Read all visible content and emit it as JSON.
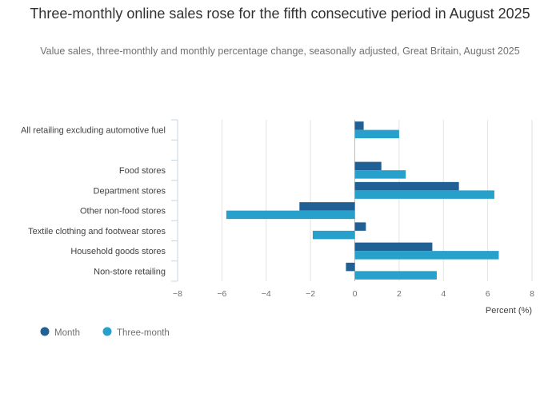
{
  "chart_data": {
    "type": "bar",
    "orientation": "horizontal",
    "title": "Three-monthly online sales rose for the fifth consecutive period in August 2025",
    "subtitle": "Value sales, three-monthly and monthly percentage change, seasonally adjusted, Great Britain, August 2025",
    "xlabel": "Percent (%)",
    "xlim": [
      -8,
      8
    ],
    "xticks": [
      -8,
      -6,
      -4,
      -2,
      0,
      2,
      4,
      6,
      8
    ],
    "grid": true,
    "legend_position": "bottom-left",
    "categories": [
      "All retailing excluding automotive fuel",
      "",
      "Food stores",
      "Department stores",
      "Other non-food stores",
      "Textile clothing and footwear stores",
      "Household goods stores",
      "Non-store retailing"
    ],
    "series": [
      {
        "name": "Month",
        "color": "#206095",
        "values": [
          0.4,
          null,
          1.2,
          4.7,
          -2.5,
          0.5,
          3.5,
          -0.4
        ]
      },
      {
        "name": "Three-month",
        "color": "#27a0cc",
        "values": [
          2.0,
          null,
          2.3,
          6.3,
          -5.8,
          -1.9,
          6.5,
          3.7
        ]
      }
    ]
  }
}
